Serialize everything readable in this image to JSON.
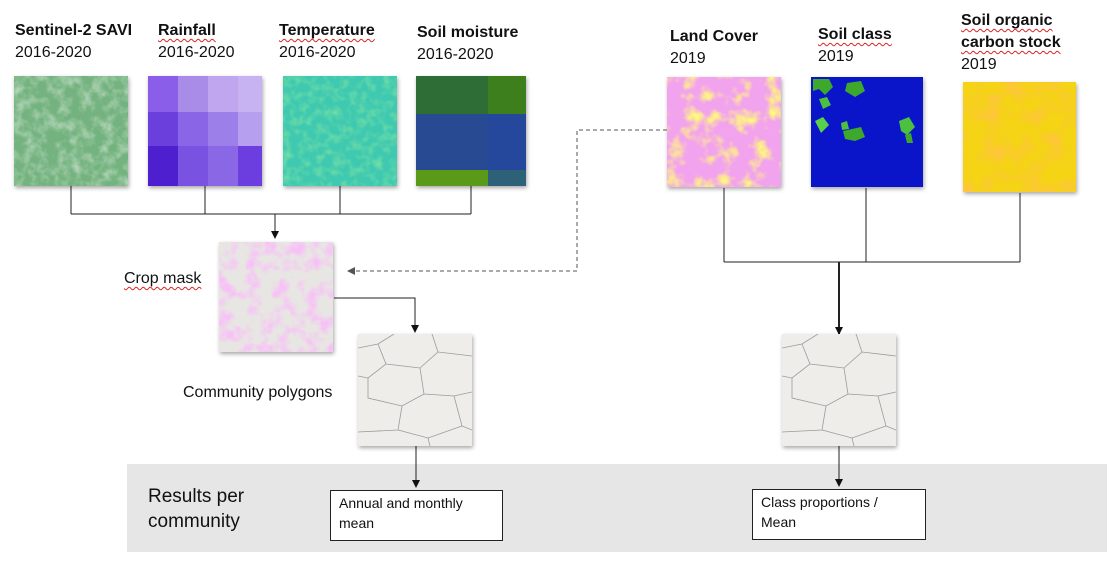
{
  "inputs_left": [
    {
      "title": "Sentinel-2 SAVI",
      "period": "2016-2020"
    },
    {
      "title": "Rainfall",
      "period": "2016-2020"
    },
    {
      "title": "Temperature",
      "period": "2016-2020"
    },
    {
      "title": "Soil moisture",
      "period": "2016-2020"
    }
  ],
  "inputs_right": [
    {
      "title": "Land Cover",
      "period": "2019"
    },
    {
      "title_line1": "Soil class",
      "period": "2019"
    },
    {
      "title_line1": "Soil organic",
      "title_line2": "carbon stock",
      "period": "2019"
    }
  ],
  "crop_mask_label": "Crop mask",
  "community_polygons_label": "Community polygons",
  "results": {
    "label_line1": "Results per",
    "label_line2": "community",
    "left_box_line1": "Annual and monthly",
    "left_box_line2": "mean",
    "right_box_line1": "Class proportions /",
    "right_box_line2": "Mean"
  },
  "colors": {
    "results_band": "#e6e6e6",
    "crop_mask_pink": "#ee88ee",
    "soil_class_blue": "#0a14c8"
  }
}
